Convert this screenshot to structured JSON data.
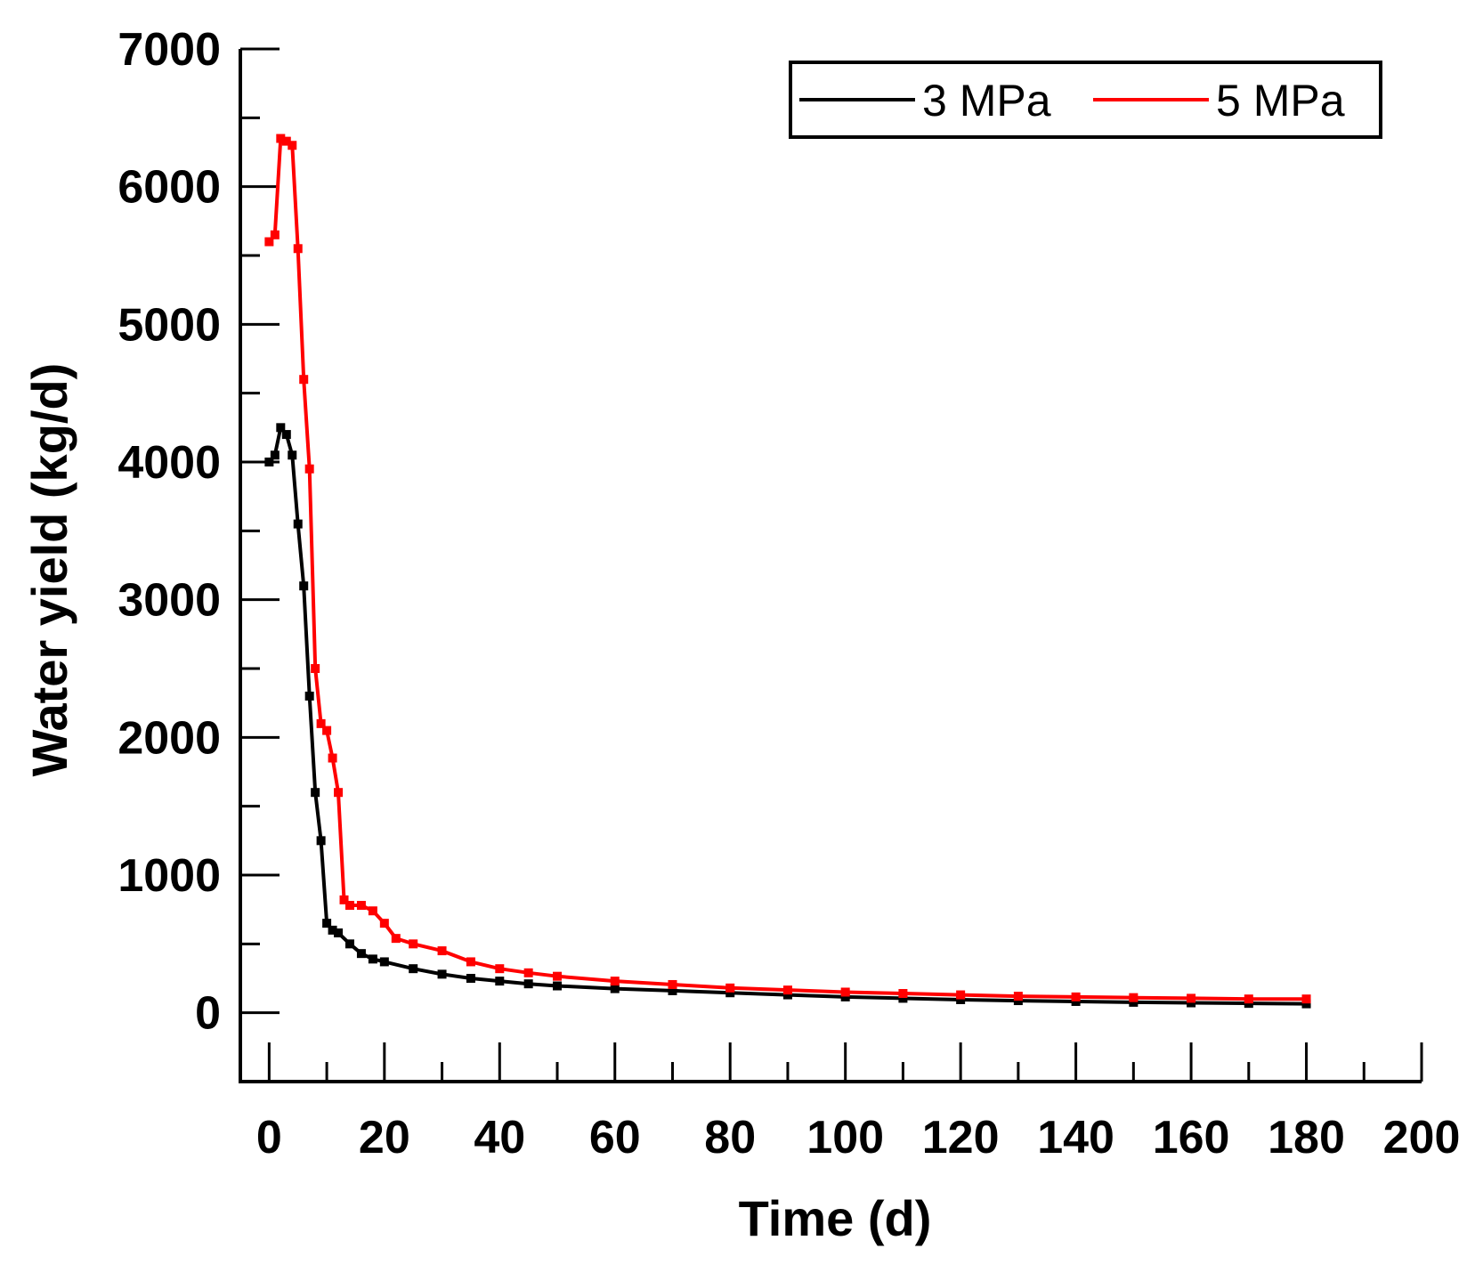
{
  "chart_data": {
    "type": "line",
    "title": "",
    "xlabel": "Time (d)",
    "ylabel": "Water yield (kg/d)",
    "xlim": [
      -5,
      200
    ],
    "ylim": [
      -500,
      7000
    ],
    "xticks": [
      0,
      20,
      40,
      60,
      80,
      100,
      120,
      140,
      160,
      180,
      200
    ],
    "xtick_labels": [
      "0",
      "20",
      "40",
      "60",
      "80",
      "100",
      "120",
      "140",
      "160",
      "180",
      "200"
    ],
    "yticks": [
      0,
      1000,
      2000,
      3000,
      4000,
      5000,
      6000,
      7000
    ],
    "ytick_labels": [
      "0",
      "1000",
      "2000",
      "3000",
      "4000",
      "5000",
      "6000",
      "7000"
    ],
    "x_minor_step": 10,
    "y_minor_step": 500,
    "grid": false,
    "legend_position": "top-right",
    "series": [
      {
        "name": "3 MPa",
        "color": "#000000",
        "x": [
          0,
          1,
          2,
          3,
          4,
          5,
          6,
          7,
          8,
          9,
          10,
          11,
          12,
          14,
          16,
          18,
          20,
          25,
          30,
          35,
          40,
          45,
          50,
          60,
          70,
          80,
          90,
          100,
          110,
          120,
          130,
          140,
          150,
          160,
          170,
          180
        ],
        "y": [
          4000,
          4050,
          4250,
          4200,
          4050,
          3550,
          3100,
          2300,
          1600,
          1250,
          650,
          600,
          580,
          500,
          430,
          390,
          370,
          320,
          280,
          250,
          230,
          210,
          195,
          175,
          160,
          145,
          130,
          115,
          105,
          95,
          88,
          82,
          76,
          72,
          68,
          65
        ]
      },
      {
        "name": "5 MPa",
        "color": "#ff0000",
        "x": [
          0,
          1,
          2,
          3,
          4,
          5,
          6,
          7,
          8,
          9,
          10,
          11,
          12,
          13,
          14,
          16,
          18,
          20,
          22,
          25,
          30,
          35,
          40,
          45,
          50,
          60,
          70,
          80,
          90,
          100,
          110,
          120,
          130,
          140,
          150,
          160,
          170,
          180
        ],
        "y": [
          5600,
          5650,
          6350,
          6330,
          6300,
          5550,
          4600,
          3950,
          2500,
          2100,
          2050,
          1850,
          1600,
          820,
          780,
          780,
          740,
          650,
          540,
          500,
          450,
          370,
          320,
          290,
          265,
          230,
          205,
          180,
          165,
          150,
          140,
          130,
          120,
          115,
          110,
          105,
          100,
          100
        ]
      }
    ]
  }
}
